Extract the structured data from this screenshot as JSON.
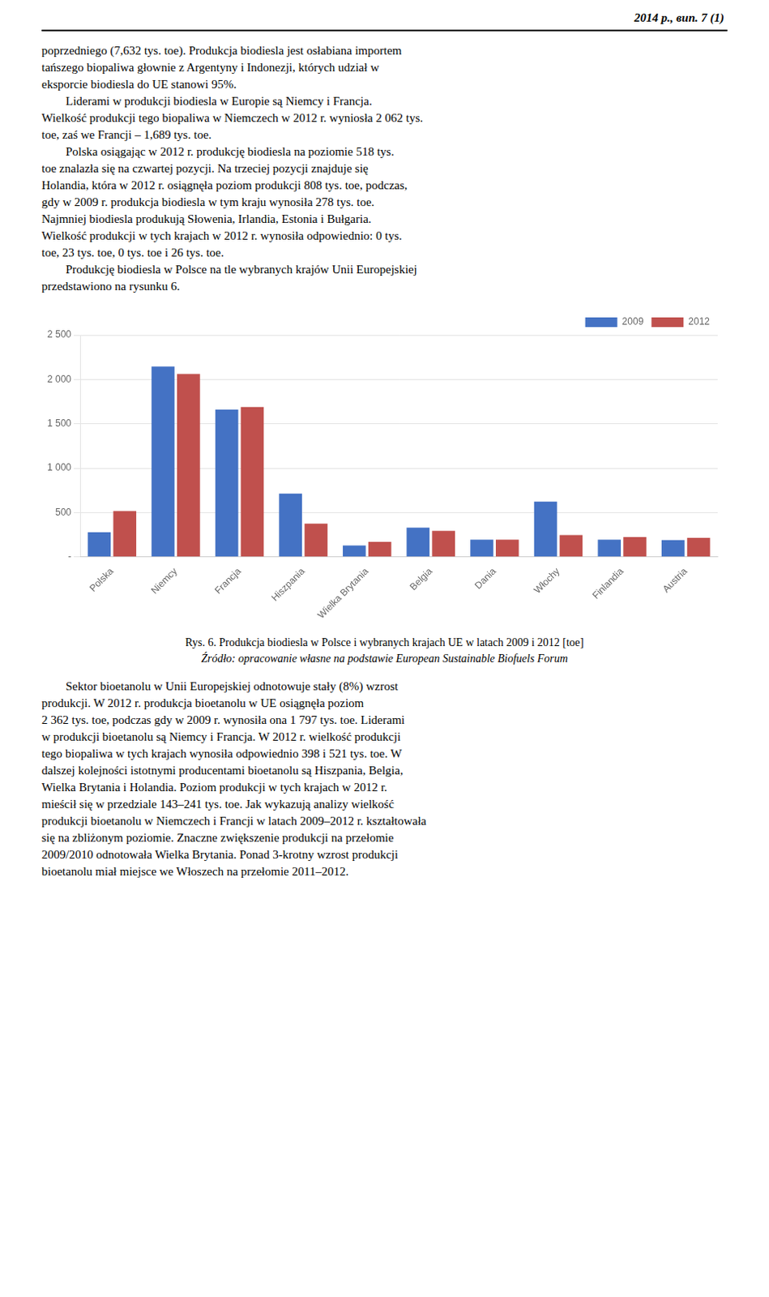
{
  "chart_data": {
    "type": "bar",
    "title": "Rys. 6. Produkcja biodiesla w Polsce i wybranych krajach UE w latach 2009 i 2012 [toe]",
    "subtitle": "Źródło: opracowanie własne na podstawie European Sustainable Biofuels Forum",
    "annotations": [
      "2014 р., вип. 7 (1)",
      "poprzedniego (7,632 tys. toe). Produkcja biodiesla jest osłabiana importem\ntańszego biopaliwa głownie z Argentyny i Indonezji, których udział w\neksporcie biodiesla do UE stanowi 95%.\n        Liderami w produkcji biodiesla w Europie są Niemcy i Francja.\nWielkość produkcji tego biopaliwa w Niemczech w 2012 r. wyniosła 2 062 tys.\ntoe, zaś we Francji – 1,689 tys. toe.\n        Polska osiągając w 2012 r. produkcję biodiesla na poziomie 518 tys.\ntoe znalazła się na czwartej pozycji. Na trzeciej pozycji znajduje się\nHolandia, która w 2012 r. osiągnęła poziom produkcji 808 tys. toe, podczas,\ngdy w 2009 r. produkcja biodiesla w tym kraju wynosiła 278 tys. toe.\nNajmniej biodiesla produkują Słowenia, Irlandia, Estonia i Bułgaria.\nWielkość produkcji w tych krajach w 2012 r. wynosiła odpowiednio: 0 tys.\ntoe, 23 tys. toe, 0 tys. toe i 26 tys. toe.\n        Produkcję biodiesla w Polsce na tle wybranych krajów Unii Europejskiej\nprzedstawiono na rysunku 6.",
      "        Sektor bioetanolu w Unii Europejskiej odnotowuje stały (8%) wzrost\nprodukcji. W 2012 r. produkcja bioetanolu w UE osiągnęła poziom\n2 362 tys. toe, podczas gdy w 2009 r. wynosiła ona 1 797 tys. toe. Liderami\nw produkcji bioetanolu są Niemcy i Francja. W 2012 r. wielkość produkcji\ntego biopaliwa w tych krajach wynosiła odpowiednio 398 i 521 tys. toe. W\ndalszej kolejności istotnymi producentami bioetanolu są Hiszpania, Belgia,\nWielka Brytania i Holandia. Poziom produkcji w tych krajach w 2012 r.\nmieścił się w przedziale 143–241 tys. toe. Jak wykazują analizy wielkość\nprodukcji bioetanolu w Niemczech i Francji w latach 2009–2012 r. kształtowała\nsię na zbliżonym poziomie. Znaczne zwiększenie produkcji na przełomie\n2009/2010 odnotowała Wielka Brytania. Ponad 3-krotny wzrost produkcji\nbioetanolu miał miejsce we Włoszech na przełomie 2011–2012."
    ],
    "categories": [
      "Polska",
      "Niemcy",
      "Francja",
      "Hiszpania",
      "Wielka Brytania",
      "Belgia",
      "Dania",
      "Włochy",
      "Finlandia",
      "Austria"
    ],
    "series": [
      {
        "name": "2009",
        "color": "#4472C4",
        "values": [
          278,
          2146,
          1660,
          715,
          130,
          330,
          195,
          625,
          195,
          190
        ]
      },
      {
        "name": "2012",
        "color": "#C0504D",
        "values": [
          518,
          2062,
          1689,
          375,
          170,
          295,
          195,
          248,
          225,
          215
        ]
      }
    ],
    "ylim": [
      0,
      2500
    ],
    "yticks": [
      {
        "value": 0,
        "label": "-"
      },
      500,
      {
        "value": 1000,
        "label": "1 000"
      },
      {
        "value": 1500,
        "label": "1 500"
      },
      {
        "value": 2000,
        "label": "2 000"
      },
      {
        "value": 2500,
        "label": "2 500"
      }
    ],
    "grid": true,
    "legend": "upper right"
  }
}
